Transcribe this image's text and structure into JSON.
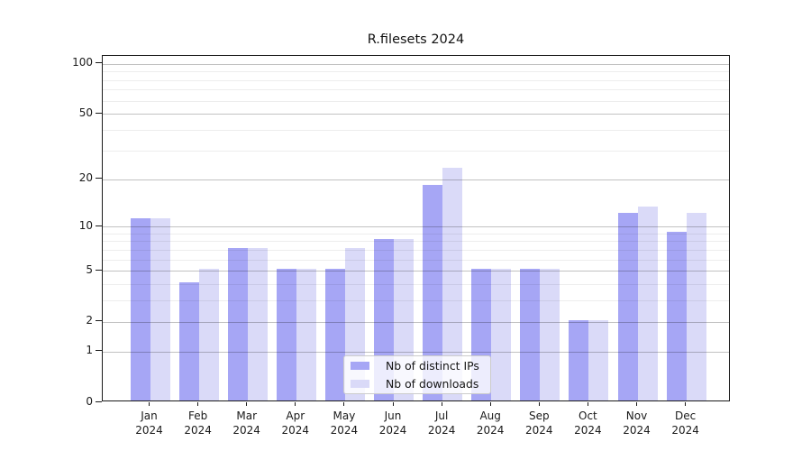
{
  "chart_data": {
    "type": "bar",
    "title": "R.filesets 2024",
    "categories": [
      "Jan",
      "Feb",
      "Mar",
      "Apr",
      "May",
      "Jun",
      "Jul",
      "Aug",
      "Sep",
      "Oct",
      "Nov",
      "Dec"
    ],
    "year_label": "2024",
    "series": [
      {
        "name": "Nb of distinct IPs",
        "color": "#a6a6f5",
        "values": [
          11,
          4,
          7,
          5,
          5,
          8,
          18,
          5,
          5,
          2,
          12,
          9
        ]
      },
      {
        "name": "Nb of downloads",
        "color": "#dadaf8",
        "values": [
          11,
          5,
          7,
          5,
          7,
          8,
          23,
          5,
          5,
          2,
          13,
          12
        ]
      }
    ],
    "y_scale": "log1p",
    "ylim": [
      0,
      111
    ],
    "y_ticks": [
      100,
      50,
      20,
      10,
      5,
      2,
      1,
      0
    ],
    "y_minor_ticks": [
      90,
      80,
      70,
      60,
      40,
      30,
      9,
      8,
      7,
      6,
      4,
      3
    ],
    "grid": true,
    "legend_position": "inside-bottom-center"
  }
}
